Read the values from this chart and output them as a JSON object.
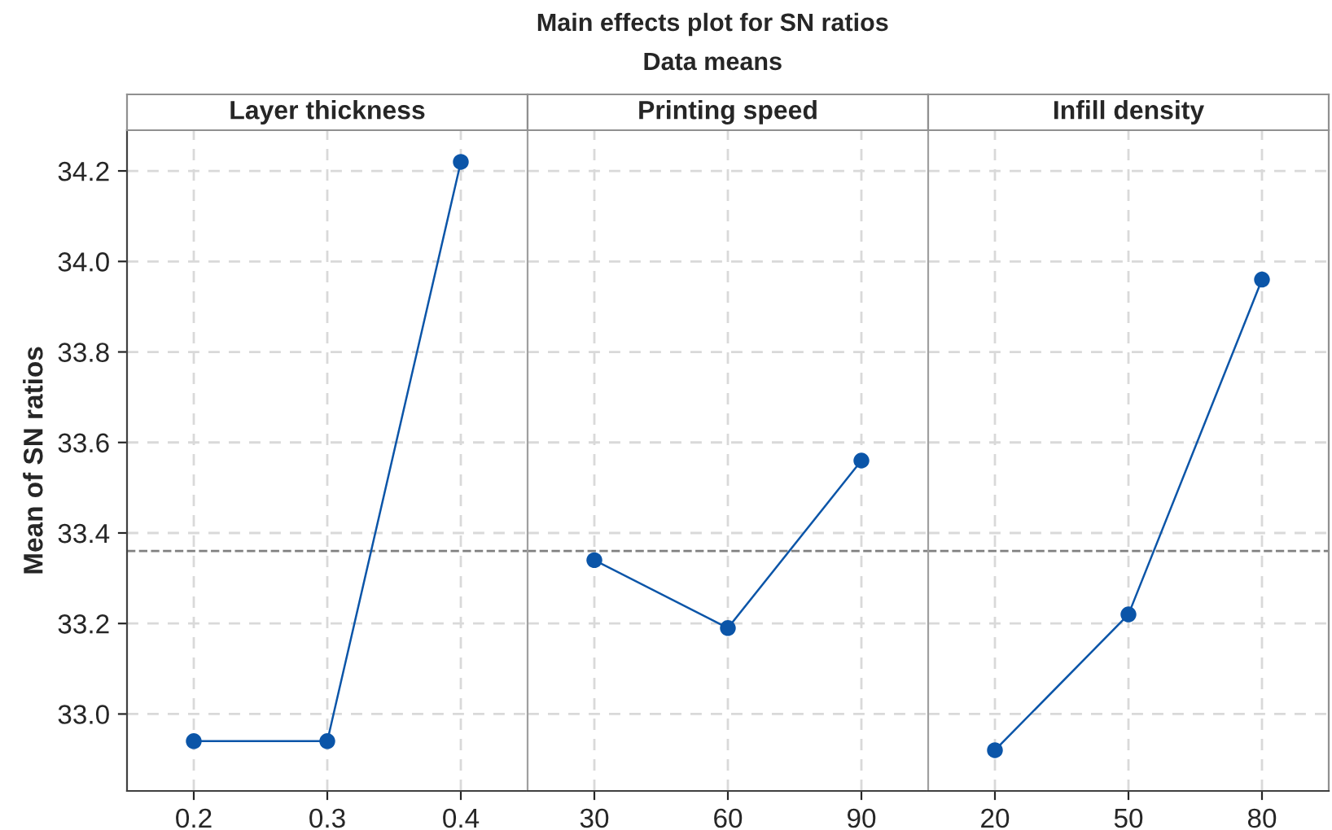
{
  "chart_data": [
    {
      "type": "line",
      "title": "Layer thickness",
      "ylabel": "Mean of SN ratios",
      "annotations": [
        "Main effects plot for SN ratios",
        "Data means"
      ],
      "categories": [
        "0.2",
        "0.3",
        "0.4"
      ],
      "series": [
        {
          "color": "#0b55a8",
          "values": [
            32.94,
            32.94,
            34.22
          ]
        }
      ],
      "ylim": [
        32.83,
        34.29
      ],
      "yticks": [
        {
          "value": 33,
          "label": "33.0"
        },
        33.2,
        33.4,
        33.6,
        33.8,
        {
          "value": 34,
          "label": "34.0"
        },
        34.2
      ],
      "grid": true,
      "marker": "circle",
      "line_style": "solid",
      "ref_lines": [
        {
          "axis": "y",
          "value": 33.36,
          "color": "#808080",
          "line_style": "dashed"
        }
      ]
    },
    {
      "type": "line",
      "title": "Printing speed",
      "categories": [
        "30",
        "60",
        "90"
      ],
      "series": [
        {
          "color": "#0b55a8",
          "values": [
            33.34,
            33.19,
            33.56
          ]
        }
      ],
      "ylim": [
        32.83,
        34.29
      ],
      "yticks": [
        33,
        33.2,
        33.4,
        33.6,
        33.8,
        34,
        34.2
      ],
      "tick_labels": "x",
      "grid": true,
      "marker": "circle",
      "line_style": "solid",
      "ref_lines": [
        {
          "axis": "y",
          "value": 33.36,
          "color": "#808080",
          "line_style": "dashed"
        }
      ]
    },
    {
      "type": "line",
      "title": "Infill density",
      "categories": [
        "20",
        "50",
        "80"
      ],
      "series": [
        {
          "color": "#0b55a8",
          "values": [
            32.92,
            33.22,
            33.96
          ]
        }
      ],
      "ylim": [
        32.83,
        34.29
      ],
      "yticks": [
        33,
        33.2,
        33.4,
        33.6,
        33.8,
        34,
        34.2
      ],
      "tick_labels": "x",
      "grid": true,
      "marker": "circle",
      "line_style": "solid",
      "ref_lines": [
        {
          "axis": "y",
          "value": 33.36,
          "color": "#808080",
          "line_style": "dashed"
        }
      ]
    }
  ]
}
